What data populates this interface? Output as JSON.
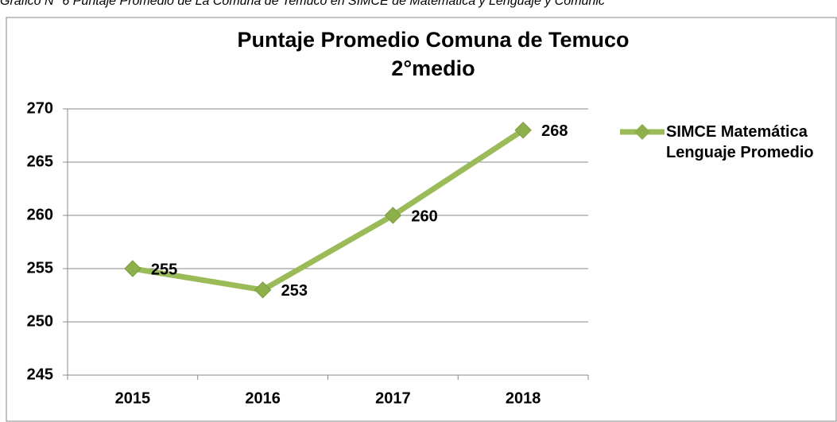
{
  "caption": "Gráfico N° 6 Puntaje Promedio de La Comuna de Temuco en SIMCE de Matemática y Lenguaje y Comunic",
  "chart_data": {
    "type": "line",
    "title": "Puntaje Promedio Comuna de Temuco",
    "subtitle": "2°medio",
    "categories": [
      "2015",
      "2016",
      "2017",
      "2018"
    ],
    "series": [
      {
        "name": "SIMCE Matemática Lenguaje Promedio",
        "color": "#9bbb59",
        "values": [
          255,
          253,
          260,
          268
        ]
      }
    ],
    "ylim": [
      245,
      270
    ],
    "yticks": [
      245,
      250,
      255,
      260,
      265,
      270
    ],
    "grid": true,
    "legend": "right"
  }
}
